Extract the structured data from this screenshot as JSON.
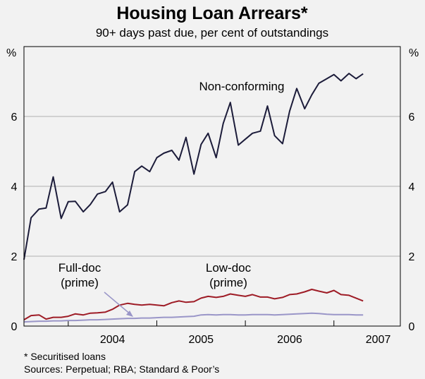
{
  "chart_data": {
    "type": "line",
    "title": "Housing Loan Arrears*",
    "subtitle": "90+ days past due, per cent of outstandings",
    "ylabel_left": "%",
    "ylabel_right": "%",
    "ylim": [
      0,
      8
    ],
    "yticks": [
      0,
      2,
      4,
      6
    ],
    "xlim": [
      2003.5,
      2007.75
    ],
    "xticks": [
      {
        "label": "2004",
        "value": 2004.0
      },
      {
        "label": "2005",
        "value": 2005.0
      },
      {
        "label": "2006",
        "value": 2006.0
      },
      {
        "label": "2007",
        "value": 2007.0
      }
    ],
    "grid": true,
    "colors": {
      "non_conforming": "#1c1c3a",
      "low_doc": "#9e1c26",
      "full_doc": "#9a96c8",
      "grid": "#b0b0b0"
    },
    "annotations": {
      "non_conforming": "Non-conforming",
      "low_doc": "Low-doc",
      "low_doc_sub": "(prime)",
      "full_doc": "Full-doc",
      "full_doc_sub": "(prime)"
    },
    "series": [
      {
        "key": "non_conforming",
        "x": [
          2003.5,
          2003.58,
          2003.67,
          2003.75,
          2003.83,
          2003.92,
          2004.0,
          2004.08,
          2004.17,
          2004.25,
          2004.33,
          2004.42,
          2004.5,
          2004.58,
          2004.67,
          2004.75,
          2004.83,
          2004.92,
          2005.0,
          2005.08,
          2005.17,
          2005.25,
          2005.33,
          2005.42,
          2005.5,
          2005.58,
          2005.67,
          2005.75,
          2005.83,
          2005.92,
          2006.0,
          2006.08,
          2006.17,
          2006.25,
          2006.33,
          2006.42,
          2006.5,
          2006.58,
          2006.67,
          2006.75,
          2006.83,
          2006.92,
          2007.0,
          2007.08,
          2007.17,
          2007.25,
          2007.33
        ],
        "values": [
          1.9,
          3.1,
          3.35,
          3.38,
          4.27,
          3.08,
          3.56,
          3.57,
          3.27,
          3.48,
          3.78,
          3.85,
          4.12,
          3.27,
          3.47,
          4.42,
          4.58,
          4.42,
          4.82,
          4.95,
          5.03,
          4.75,
          5.4,
          4.35,
          5.2,
          5.52,
          4.82,
          5.8,
          6.4,
          5.18,
          5.35,
          5.52,
          5.58,
          6.3,
          5.45,
          5.22,
          6.15,
          6.8,
          6.22,
          6.62,
          6.95,
          7.08,
          7.2,
          7.02,
          7.23,
          7.08,
          7.22
        ]
      },
      {
        "key": "low_doc",
        "x": [
          2003.5,
          2003.58,
          2003.67,
          2003.75,
          2003.83,
          2003.92,
          2004.0,
          2004.08,
          2004.17,
          2004.25,
          2004.33,
          2004.42,
          2004.5,
          2004.58,
          2004.67,
          2004.75,
          2004.83,
          2004.92,
          2005.0,
          2005.08,
          2005.17,
          2005.25,
          2005.33,
          2005.42,
          2005.5,
          2005.58,
          2005.67,
          2005.75,
          2005.83,
          2005.92,
          2006.0,
          2006.08,
          2006.17,
          2006.25,
          2006.33,
          2006.42,
          2006.5,
          2006.58,
          2006.67,
          2006.75,
          2006.83,
          2006.92,
          2007.0,
          2007.08,
          2007.17,
          2007.25,
          2007.33
        ],
        "values": [
          0.18,
          0.3,
          0.32,
          0.2,
          0.25,
          0.25,
          0.28,
          0.35,
          0.32,
          0.37,
          0.38,
          0.4,
          0.48,
          0.6,
          0.65,
          0.62,
          0.6,
          0.62,
          0.6,
          0.58,
          0.67,
          0.72,
          0.68,
          0.7,
          0.8,
          0.85,
          0.82,
          0.85,
          0.92,
          0.88,
          0.85,
          0.9,
          0.83,
          0.83,
          0.78,
          0.82,
          0.9,
          0.92,
          0.98,
          1.05,
          1.0,
          0.95,
          1.02,
          0.9,
          0.88,
          0.8,
          0.72
        ]
      },
      {
        "key": "full_doc",
        "x": [
          2003.5,
          2003.58,
          2003.67,
          2003.75,
          2003.83,
          2003.92,
          2004.0,
          2004.08,
          2004.17,
          2004.25,
          2004.33,
          2004.42,
          2004.5,
          2004.58,
          2004.67,
          2004.75,
          2004.83,
          2004.92,
          2005.0,
          2005.08,
          2005.17,
          2005.25,
          2005.33,
          2005.42,
          2005.5,
          2005.58,
          2005.67,
          2005.75,
          2005.83,
          2005.92,
          2006.0,
          2006.08,
          2006.17,
          2006.25,
          2006.33,
          2006.42,
          2006.5,
          2006.58,
          2006.67,
          2006.75,
          2006.83,
          2006.92,
          2007.0,
          2007.08,
          2007.17,
          2007.25,
          2007.33
        ],
        "values": [
          0.12,
          0.13,
          0.14,
          0.14,
          0.15,
          0.15,
          0.16,
          0.16,
          0.17,
          0.18,
          0.18,
          0.19,
          0.2,
          0.21,
          0.22,
          0.22,
          0.23,
          0.23,
          0.24,
          0.25,
          0.25,
          0.26,
          0.27,
          0.28,
          0.32,
          0.33,
          0.32,
          0.33,
          0.33,
          0.32,
          0.32,
          0.33,
          0.33,
          0.33,
          0.32,
          0.33,
          0.34,
          0.35,
          0.36,
          0.37,
          0.36,
          0.34,
          0.33,
          0.33,
          0.33,
          0.32,
          0.32
        ]
      }
    ]
  },
  "footnotes": {
    "note1": "*   Securitised loans",
    "sources": "Sources: Perpetual; RBA; Standard & Poor’s"
  }
}
